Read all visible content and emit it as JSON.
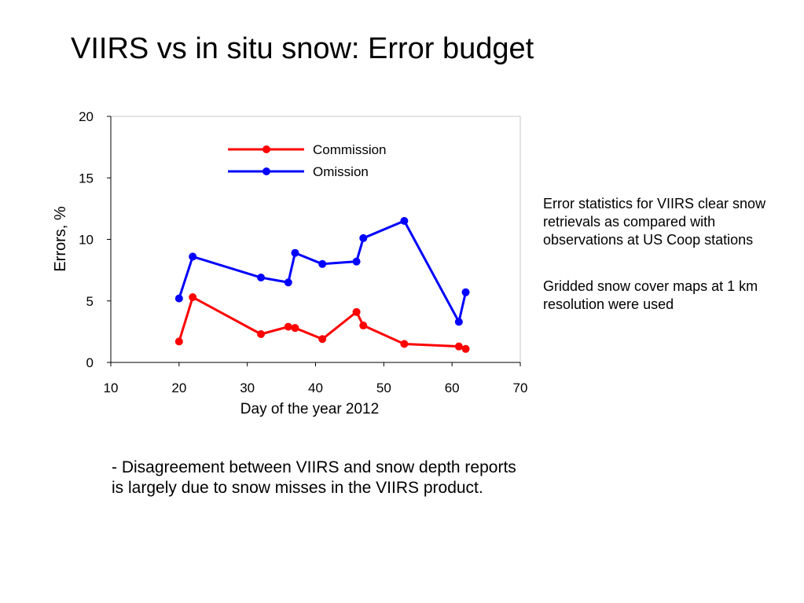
{
  "page": {
    "title": "VIIRS vs in situ snow: Error budget",
    "side_notes": [
      "Error statistics for VIIRS clear snow retrievals as compared with observations at US Coop stations",
      "Gridded snow cover maps at 1 km resolution were used"
    ],
    "bottom_note": "- Disagreement between VIIRS and snow depth reports is largely due to snow misses in the VIIRS product."
  },
  "chart_data": {
    "type": "line",
    "title": "",
    "xlabel": "Day of the year 2012",
    "ylabel": "Errors, %",
    "xlim": [
      10,
      70
    ],
    "ylim": [
      0,
      20
    ],
    "xticks": [
      10,
      20,
      30,
      40,
      50,
      60,
      70
    ],
    "yticks": [
      0,
      5,
      10,
      15,
      20
    ],
    "grid": false,
    "legend_position": "top-center",
    "series": [
      {
        "name": "Commission",
        "color": "#ff0000",
        "points": [
          [
            20,
            1.7
          ],
          [
            22,
            5.3
          ],
          [
            32,
            2.3
          ],
          [
            36,
            2.9
          ],
          [
            37,
            2.8
          ],
          [
            41,
            1.9
          ],
          [
            46,
            4.1
          ],
          [
            47,
            3.0
          ],
          [
            53,
            1.5
          ],
          [
            61,
            1.3
          ],
          [
            62,
            1.1
          ]
        ]
      },
      {
        "name": "Omission",
        "color": "#0000ff",
        "points": [
          [
            20,
            5.2
          ],
          [
            22,
            8.6
          ],
          [
            32,
            6.9
          ],
          [
            36,
            6.5
          ],
          [
            37,
            8.9
          ],
          [
            41,
            8.0
          ],
          [
            46,
            8.2
          ],
          [
            47,
            10.1
          ],
          [
            53,
            11.5
          ],
          [
            61,
            3.3
          ],
          [
            62,
            5.7
          ]
        ]
      }
    ]
  }
}
